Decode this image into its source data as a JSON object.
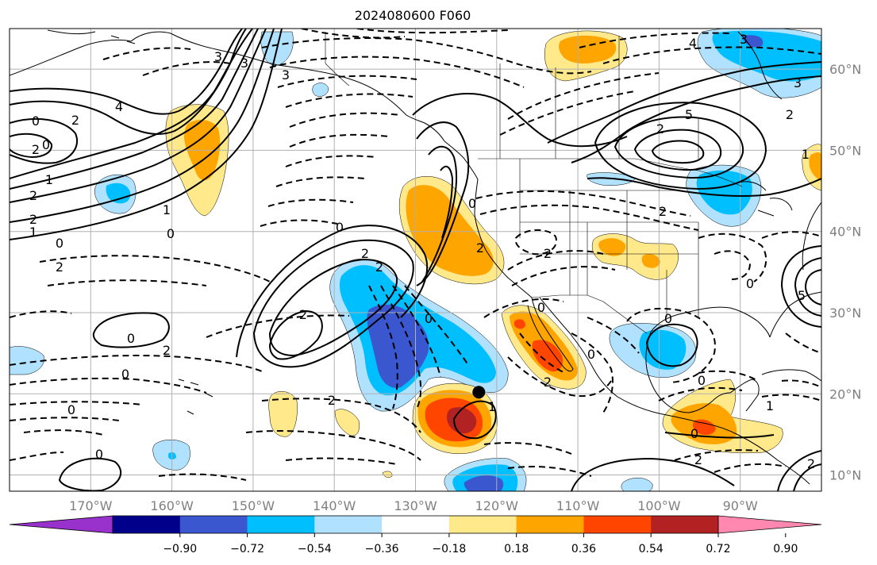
{
  "title": "2024080600 F060",
  "map": {
    "lon_range": [
      -180,
      -80
    ],
    "lat_range": [
      8,
      65
    ],
    "lon_ticks": [
      "170°W",
      "160°W",
      "150°W",
      "140°W",
      "130°W",
      "120°W",
      "110°W",
      "100°W",
      "90°W"
    ],
    "lat_ticks": [
      "10°N",
      "20°N",
      "30°N",
      "40°N",
      "50°N",
      "60°N"
    ],
    "grid": true,
    "marker": {
      "lon": -122.2,
      "lat": 20.2
    },
    "contour_labels": [
      "3",
      "3",
      "3",
      "4",
      "2",
      "0",
      "0",
      "2",
      "1",
      "2",
      "2",
      "1",
      "0",
      "2",
      "1",
      "0",
      "0",
      "2",
      "2",
      "2",
      "0",
      "2",
      "0",
      "0",
      "0",
      "2",
      "1",
      "0",
      "0",
      "2",
      "4",
      "3",
      "5",
      "2",
      "3",
      "2",
      "1",
      "0",
      "2",
      "2",
      "0",
      "0",
      "2",
      "0",
      "0",
      "2",
      "1",
      "0",
      "5",
      "2"
    ]
  },
  "colorbar": {
    "tick_labels": [
      "−0.90",
      "−0.72",
      "−0.54",
      "−0.36",
      "−0.18",
      "0.18",
      "0.36",
      "0.54",
      "0.72",
      "0.90"
    ],
    "colors": [
      "#9932cc",
      "#00008b",
      "#3a57d0",
      "#00bfff",
      "#b0e2ff",
      "#ffffff",
      "#ffe98a",
      "#ffa500",
      "#ff4500",
      "#b22222",
      "#ff88b0"
    ]
  },
  "shading_colors": {
    "light_blue": "#b0e2ff",
    "blue": "#00bfff",
    "dark_blue": "#3a57d0",
    "light_yellow": "#ffe98a",
    "orange": "#ffa500",
    "red_orange": "#ff4500",
    "dark_red": "#b22222"
  }
}
